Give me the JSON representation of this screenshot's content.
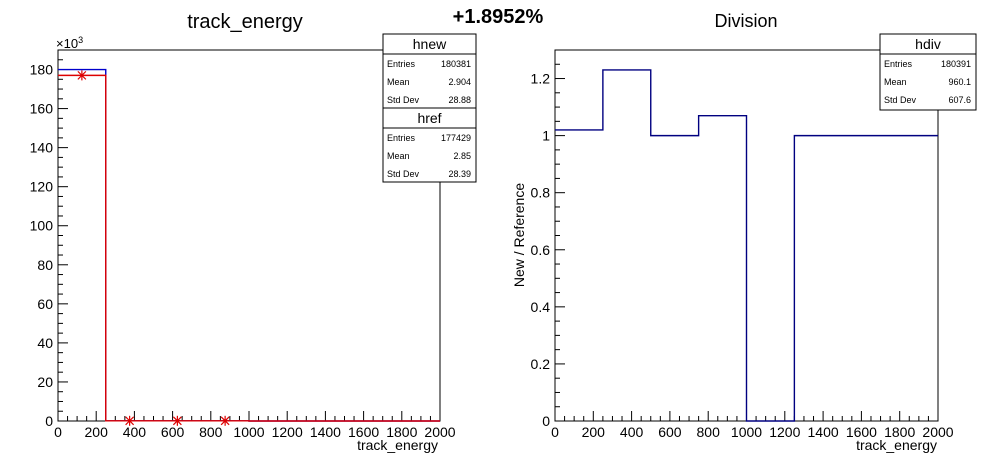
{
  "header": {
    "percent": "+1.8952%"
  },
  "chart_data": [
    {
      "type": "histogram",
      "title": "track_energy",
      "xlabel": "track_energy",
      "ylabel": "",
      "y_multiplier": "×10",
      "y_multiplier_exp": "3",
      "xlim": [
        0,
        2000
      ],
      "ylim": [
        0,
        190
      ],
      "x_ticks": [
        0,
        200,
        400,
        600,
        800,
        1000,
        1200,
        1400,
        1600,
        1800,
        2000
      ],
      "y_ticks": [
        0,
        20,
        40,
        60,
        80,
        100,
        120,
        140,
        160,
        180
      ],
      "bin_edges": [
        0,
        250,
        500,
        750,
        1000,
        1250,
        1500,
        1750,
        2000
      ],
      "series": [
        {
          "name": "hnew",
          "color": "#0000cc",
          "style": "step",
          "values": [
            180.0,
            0.1,
            0.1,
            0.1,
            0,
            0,
            0,
            0
          ]
        },
        {
          "name": "href",
          "color": "#dd0000",
          "style": "step-markers",
          "values": [
            177.0,
            0.1,
            0.1,
            0.1,
            0,
            0,
            0,
            0
          ]
        }
      ],
      "stats": [
        {
          "name": "hnew",
          "rows": [
            {
              "label": "Entries",
              "value": "180381"
            },
            {
              "label": "Mean",
              "value": "2.904"
            },
            {
              "label": "Std Dev",
              "value": "28.88"
            }
          ]
        },
        {
          "name": "href",
          "rows": [
            {
              "label": "Entries",
              "value": "177429"
            },
            {
              "label": "Mean",
              "value": "2.85"
            },
            {
              "label": "Std Dev",
              "value": "28.39"
            }
          ]
        }
      ]
    },
    {
      "type": "histogram",
      "title": "Division",
      "xlabel": "track_energy",
      "ylabel": "New / Reference",
      "xlim": [
        0,
        2000
      ],
      "ylim": [
        0,
        1.3
      ],
      "x_ticks": [
        0,
        200,
        400,
        600,
        800,
        1000,
        1200,
        1400,
        1600,
        1800,
        2000
      ],
      "y_ticks": [
        0,
        0.2,
        0.4,
        0.6,
        0.8,
        1,
        1.2
      ],
      "y_tick_labels": [
        "0",
        "0.2",
        "0.4",
        "0.6",
        "0.8",
        "1",
        "1.2"
      ],
      "bin_edges": [
        0,
        250,
        500,
        750,
        1000,
        1250,
        1500,
        1750,
        2000
      ],
      "series": [
        {
          "name": "hdiv",
          "color": "#000080",
          "style": "step",
          "values": [
            1.02,
            1.23,
            1.0,
            1.07,
            0,
            1.0,
            1.0,
            1.0
          ]
        }
      ],
      "stats": [
        {
          "name": "hdiv",
          "rows": [
            {
              "label": "Entries",
              "value": "180391"
            },
            {
              "label": "Mean",
              "value": "960.1"
            },
            {
              "label": "Std Dev",
              "value": "607.6"
            }
          ]
        }
      ]
    }
  ]
}
